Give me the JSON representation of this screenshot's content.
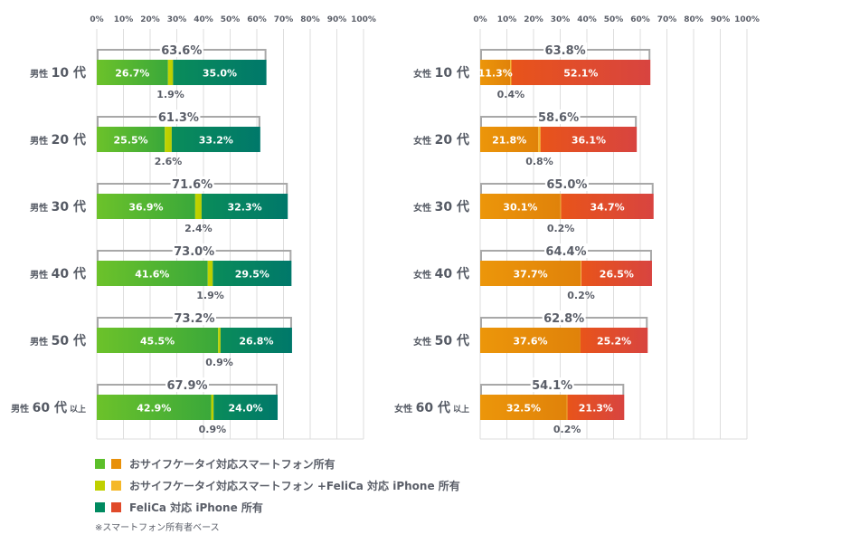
{
  "chart_data": [
    {
      "type": "bar",
      "orientation": "horizontal",
      "stacked": true,
      "panel": "male",
      "xlim": [
        0,
        100
      ],
      "xticks": [
        "0%",
        "10%",
        "20%",
        "30%",
        "40%",
        "50%",
        "60%",
        "70%",
        "80%",
        "90%",
        "100%"
      ],
      "grid": true,
      "categories": [
        {
          "gender": "男性",
          "age": "10 代",
          "suffix": ""
        },
        {
          "gender": "男性",
          "age": "20 代",
          "suffix": ""
        },
        {
          "gender": "男性",
          "age": "30 代",
          "suffix": ""
        },
        {
          "gender": "男性",
          "age": "40 代",
          "suffix": ""
        },
        {
          "gender": "男性",
          "age": "50 代",
          "suffix": ""
        },
        {
          "gender": "男性",
          "age": "60 代",
          "suffix": "以上"
        }
      ],
      "series": [
        {
          "name": "おサイフケータイ対応スマートフォン所有",
          "values": [
            26.7,
            25.5,
            36.9,
            41.6,
            45.5,
            42.9
          ],
          "colors": [
            "#6cc22a",
            "#3aa83a"
          ]
        },
        {
          "name": "おサイフケータイ対応スマートフォン +FeliCa 対応 iPhone 所有",
          "values": [
            1.9,
            2.6,
            2.4,
            1.9,
            0.9,
            0.9
          ],
          "colors": [
            "#c2d400",
            "#b8cc00"
          ]
        },
        {
          "name": "FeliCa 対応 iPhone 所有",
          "values": [
            35.0,
            33.2,
            32.3,
            29.5,
            26.8,
            24.0
          ],
          "colors": [
            "#0a8c5a",
            "#00786a"
          ]
        }
      ],
      "totals": [
        "63.6%",
        "61.3%",
        "71.6%",
        "73.0%",
        "73.2%",
        "67.9%"
      ]
    },
    {
      "type": "bar",
      "orientation": "horizontal",
      "stacked": true,
      "panel": "female",
      "xlim": [
        0,
        100
      ],
      "xticks": [
        "0%",
        "10%",
        "20%",
        "30%",
        "40%",
        "50%",
        "60%",
        "70%",
        "80%",
        "90%",
        "100%"
      ],
      "grid": true,
      "categories": [
        {
          "gender": "女性",
          "age": "10 代",
          "suffix": ""
        },
        {
          "gender": "女性",
          "age": "20 代",
          "suffix": ""
        },
        {
          "gender": "女性",
          "age": "30 代",
          "suffix": ""
        },
        {
          "gender": "女性",
          "age": "40 代",
          "suffix": ""
        },
        {
          "gender": "女性",
          "age": "50 代",
          "suffix": ""
        },
        {
          "gender": "女性",
          "age": "60 代",
          "suffix": "以上"
        }
      ],
      "series": [
        {
          "name": "おサイフケータイ対応スマートフォン所有",
          "values": [
            11.3,
            21.8,
            30.1,
            37.7,
            37.6,
            32.5
          ],
          "colors": [
            "#ec960a",
            "#e0820a"
          ]
        },
        {
          "name": "おサイフケータイ対応スマートフォン +FeliCa 対応 iPhone 所有",
          "values": [
            0.4,
            0.8,
            0.2,
            0.2,
            0.0,
            0.2
          ],
          "colors": [
            "#f7bd2e",
            "#f2b020"
          ]
        },
        {
          "name": "FeliCa 対応 iPhone 所有",
          "values": [
            52.1,
            36.1,
            34.7,
            26.5,
            25.2,
            21.3
          ],
          "colors": [
            "#e8541a",
            "#d84440"
          ]
        }
      ],
      "totals": [
        "63.8%",
        "58.6%",
        "65.0%",
        "64.4%",
        "62.8%",
        "54.1%"
      ],
      "mid_labels": [
        "0.4%",
        "0.8%",
        "0.2%",
        "0.2%",
        "",
        "0.2%"
      ]
    }
  ],
  "legend": [
    {
      "label": "おサイフケータイ対応スマートフォン所有",
      "colors": [
        "#5cbf2a",
        "#e8900a"
      ]
    },
    {
      "label": "おサイフケータイ対応スマートフォン +FeliCa 対応 iPhone 所有",
      "colors": [
        "#c0d000",
        "#f5b82a"
      ]
    },
    {
      "label": "FeliCa 対応 iPhone 所有",
      "colors": [
        "#008a60",
        "#e04a2a"
      ]
    }
  ],
  "note": "※スマートフォン所有者ベース"
}
